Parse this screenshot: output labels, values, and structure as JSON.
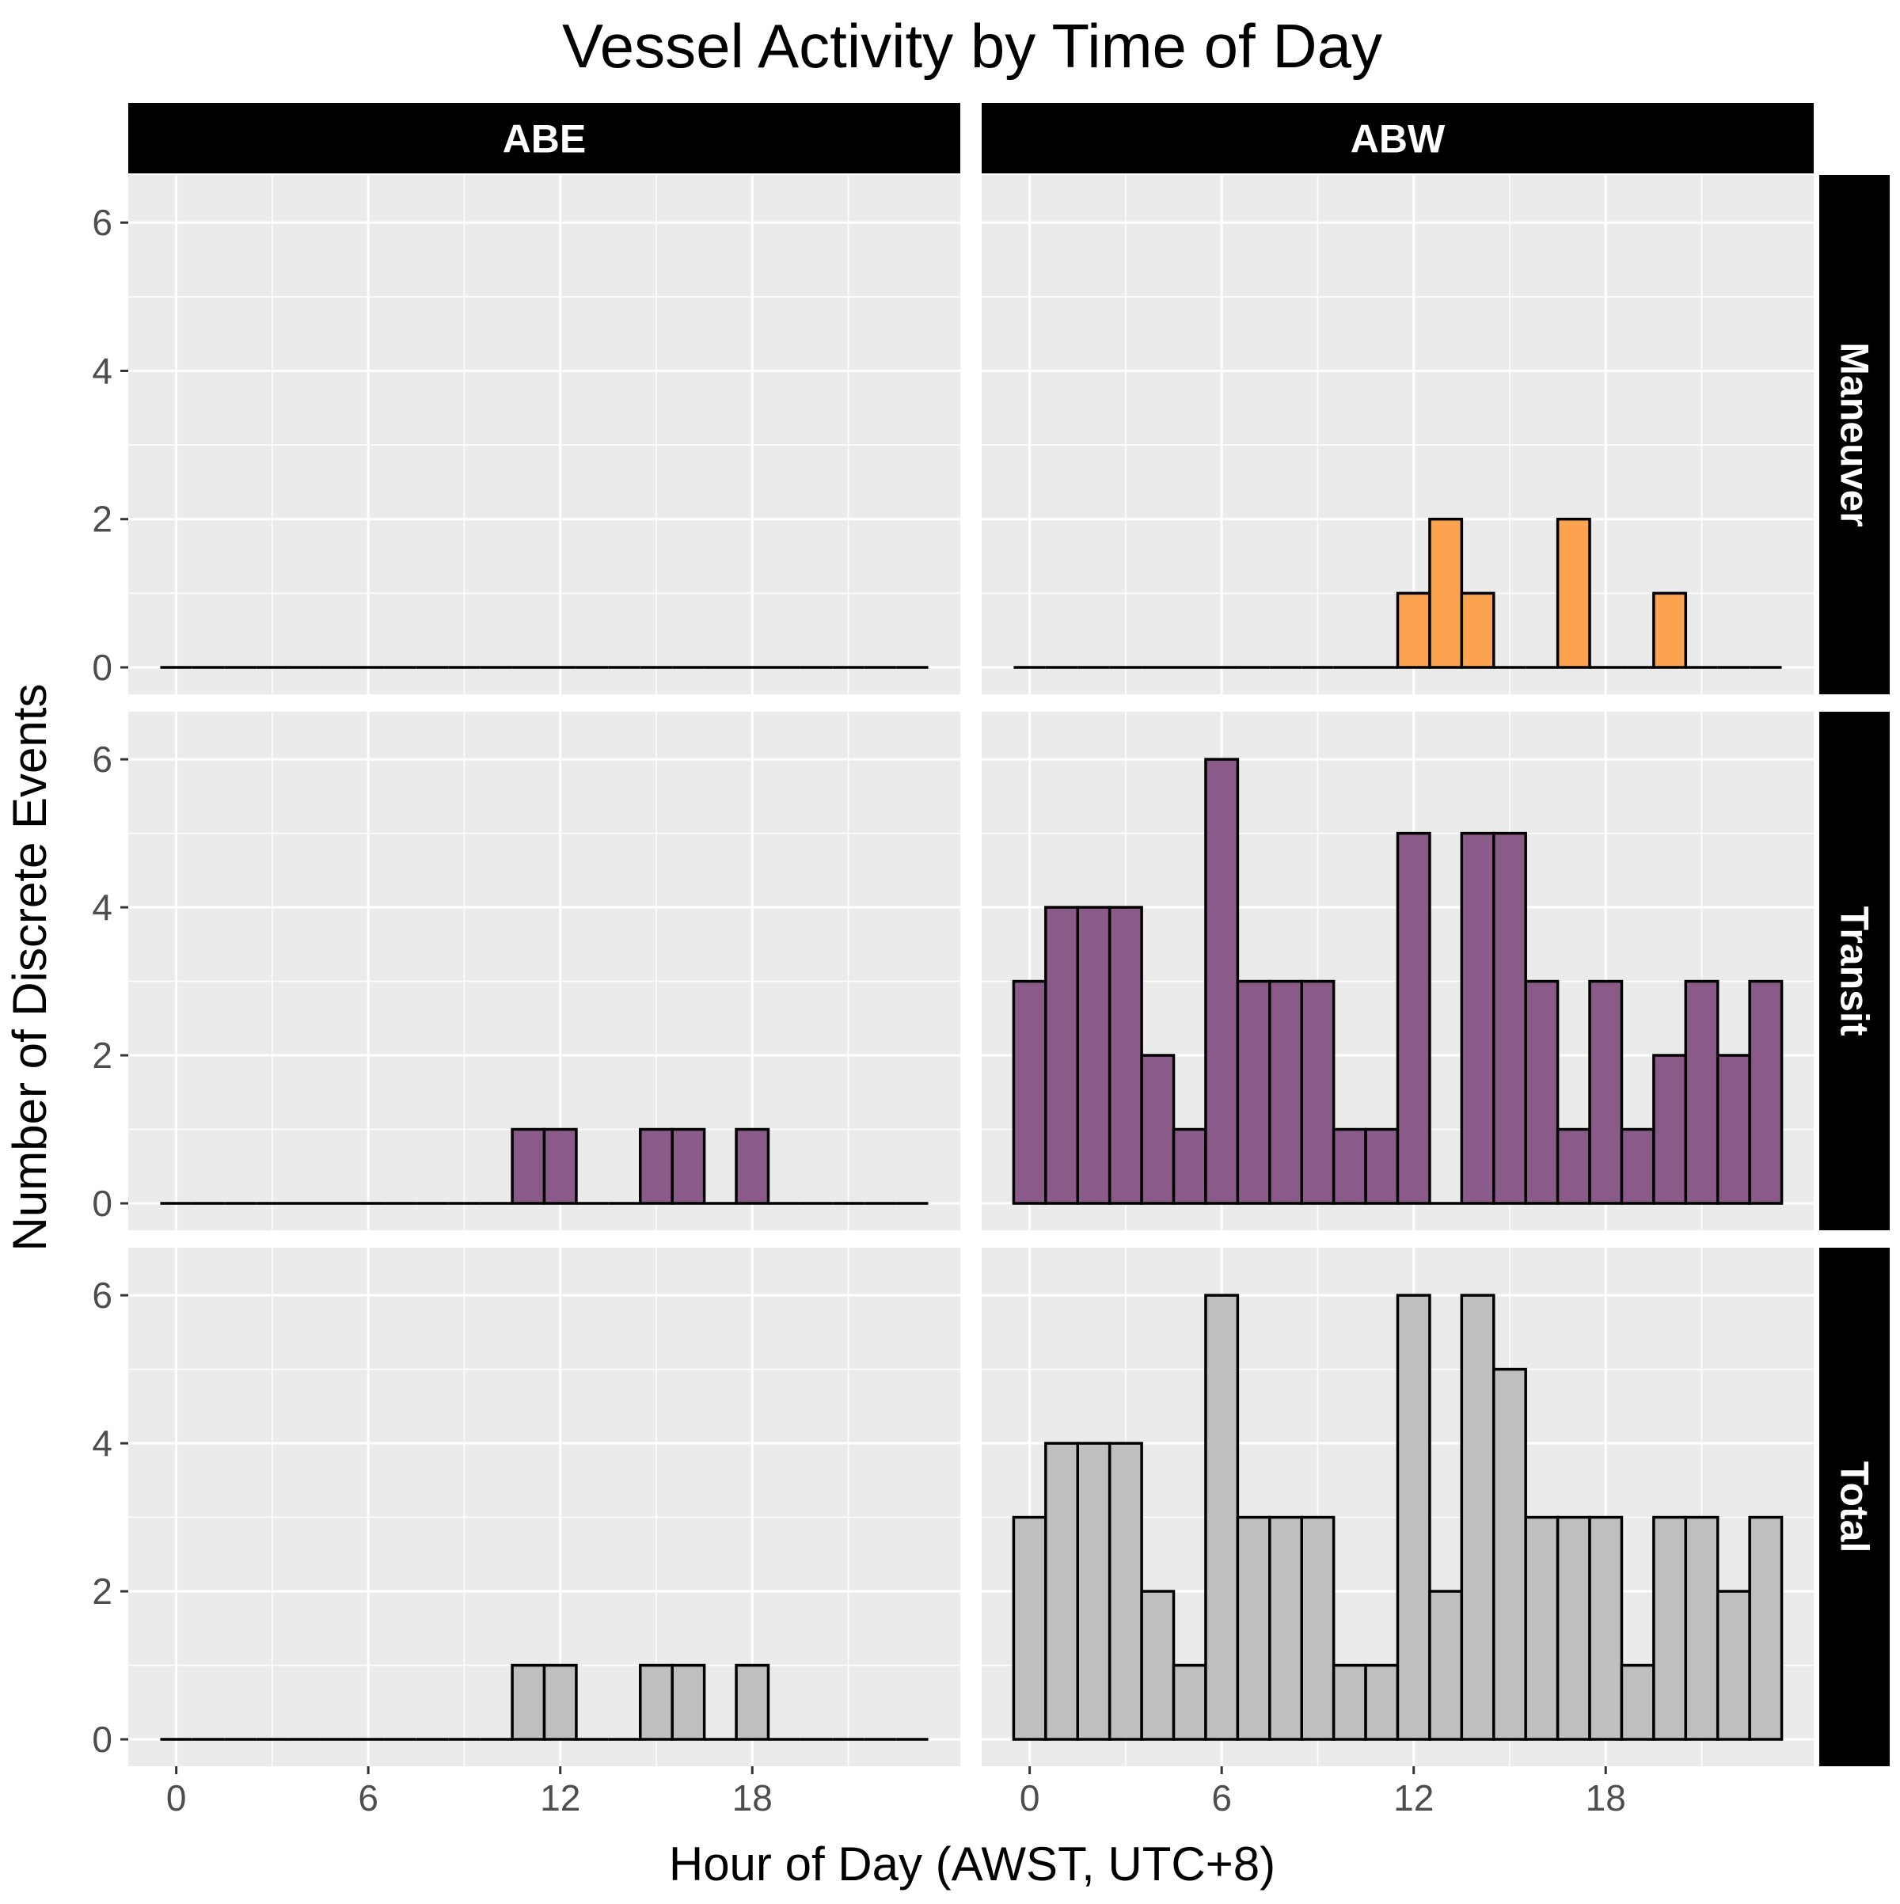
{
  "colors": {
    "panel_bg": "#ebebeb",
    "grid": "#ffffff",
    "strip_bg": "#000000",
    "strip_text": "#ffffff",
    "bar_outline": "#000000",
    "maneuver_fill": "#fba34f",
    "transit_fill": "#8a5a88",
    "total_fill": "#bfbfbf"
  },
  "chart_data": {
    "type": "bar",
    "title": "Vessel Activity by Time of Day",
    "xlabel": "Hour of Day (AWST, UTC+8)",
    "ylabel": "Number of Discrete Events",
    "x_ticks": [
      0,
      6,
      12,
      18
    ],
    "y_ticks": [
      0,
      2,
      4,
      6
    ],
    "xlim": [
      -1.5,
      24.5
    ],
    "ylim": [
      0,
      6.6
    ],
    "grid": true,
    "bins": [
      0,
      1,
      2,
      3,
      4,
      5,
      6,
      7,
      8,
      9,
      10,
      11,
      12,
      13,
      14,
      15,
      16,
      17,
      18,
      19,
      20,
      21,
      22,
      23
    ],
    "columns": [
      "ABE",
      "ABW"
    ],
    "rows": [
      "Maneuver",
      "Transit",
      "Total"
    ],
    "panels": [
      {
        "column": "ABE",
        "row": "Maneuver",
        "fill": "maneuver_fill",
        "values": [
          0,
          0,
          0,
          0,
          0,
          0,
          0,
          0,
          0,
          0,
          0,
          0,
          0,
          0,
          0,
          0,
          0,
          0,
          0,
          0,
          0,
          0,
          0,
          0
        ]
      },
      {
        "column": "ABW",
        "row": "Maneuver",
        "fill": "maneuver_fill",
        "values": [
          0,
          0,
          0,
          0,
          0,
          0,
          0,
          0,
          0,
          0,
          0,
          0,
          1,
          2,
          1,
          0,
          0,
          2,
          0,
          0,
          1,
          0,
          0,
          0
        ]
      },
      {
        "column": "ABE",
        "row": "Transit",
        "fill": "transit_fill",
        "values": [
          0,
          0,
          0,
          0,
          0,
          0,
          0,
          0,
          0,
          0,
          0,
          1,
          1,
          0,
          0,
          1,
          1,
          0,
          1,
          0,
          0,
          0,
          0,
          0
        ]
      },
      {
        "column": "ABW",
        "row": "Transit",
        "fill": "transit_fill",
        "values": [
          3,
          4,
          4,
          4,
          2,
          1,
          6,
          3,
          3,
          3,
          1,
          1,
          5,
          0,
          5,
          5,
          3,
          1,
          3,
          1,
          2,
          3,
          2,
          3
        ]
      },
      {
        "column": "ABE",
        "row": "Total",
        "fill": "total_fill",
        "values": [
          0,
          0,
          0,
          0,
          0,
          0,
          0,
          0,
          0,
          0,
          0,
          1,
          1,
          0,
          0,
          1,
          1,
          0,
          1,
          0,
          0,
          0,
          0,
          0
        ]
      },
      {
        "column": "ABW",
        "row": "Total",
        "fill": "total_fill",
        "values": [
          3,
          4,
          4,
          4,
          2,
          1,
          6,
          3,
          3,
          3,
          1,
          1,
          6,
          2,
          6,
          5,
          3,
          3,
          3,
          1,
          3,
          3,
          2,
          3
        ]
      }
    ]
  }
}
